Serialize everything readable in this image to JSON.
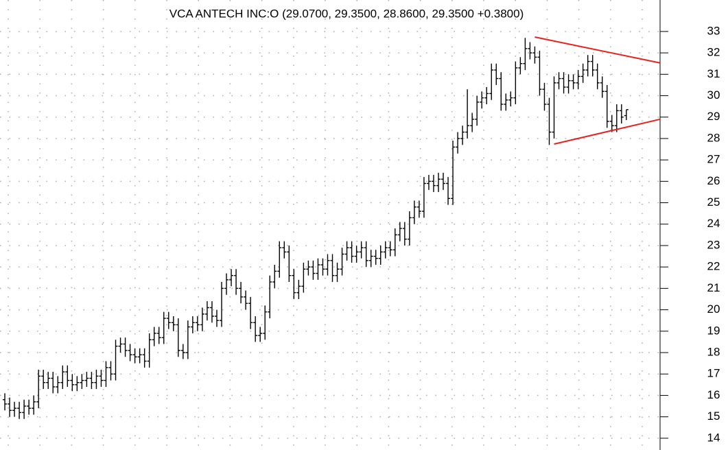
{
  "chart_data": {
    "type": "ohlc",
    "title": "VCA ANTECH INC:O (29.0700, 29.3500, 28.8600, 29.3500 +0.3800)",
    "color": "#000000",
    "xlim": [
      -1,
      136
    ],
    "ylim": [
      13.45,
      34.47
    ],
    "yticks": [
      14,
      15,
      16,
      17,
      18,
      19,
      20,
      21,
      22,
      23,
      24,
      25,
      26,
      27,
      28,
      29,
      30,
      31,
      32,
      33
    ],
    "grid": true,
    "open": [
      15.8,
      15.6,
      15.3,
      15.4,
      15.2,
      15.5,
      15.4,
      15.7,
      16.9,
      16.6,
      16.8,
      16.4,
      16.6,
      17.1,
      16.7,
      16.5,
      16.6,
      16.7,
      16.8,
      16.6,
      16.9,
      16.7,
      17.3,
      17.0,
      18.3,
      18.4,
      18.1,
      17.9,
      17.8,
      17.9,
      17.6,
      18.6,
      18.9,
      18.7,
      19.6,
      19.4,
      19.3,
      18.1,
      18.0,
      19.2,
      19.4,
      19.3,
      19.8,
      20.1,
      19.7,
      19.5,
      21.0,
      21.4,
      21.6,
      21.0,
      20.6,
      20.3,
      19.4,
      18.8,
      18.9,
      19.9,
      21.3,
      21.8,
      22.9,
      22.7,
      21.6,
      20.8,
      21.1,
      21.9,
      22.0,
      21.7,
      22.1,
      21.9,
      22.3,
      21.6,
      21.9,
      22.6,
      22.9,
      22.5,
      22.7,
      22.9,
      22.3,
      22.5,
      22.4,
      22.7,
      22.9,
      22.8,
      23.5,
      23.8,
      23.3,
      24.3,
      24.8,
      24.6,
      25.9,
      26.0,
      25.8,
      26.1,
      25.9,
      25.2,
      27.6,
      28.0,
      28.3,
      28.6,
      28.9,
      29.7,
      29.9,
      30.1,
      31.2,
      30.8,
      29.6,
      29.8,
      29.9,
      31.3,
      31.5,
      32.2,
      32.0,
      31.8,
      30.3,
      29.6,
      28.3,
      30.6,
      30.8,
      30.4,
      30.7,
      30.6,
      30.9,
      31.2,
      31.6,
      31.2,
      30.6,
      30.2,
      28.8,
      28.6,
      29.3,
      29.07
    ],
    "high": [
      16.1,
      15.9,
      15.7,
      15.7,
      15.8,
      15.8,
      16.0,
      17.2,
      17.2,
      17.1,
      17.1,
      16.9,
      17.4,
      17.4,
      17.0,
      16.9,
      17.0,
      17.1,
      17.1,
      17.2,
      17.2,
      17.6,
      17.6,
      18.6,
      18.7,
      18.7,
      18.4,
      18.2,
      18.2,
      18.2,
      18.9,
      19.2,
      19.2,
      19.9,
      19.9,
      19.7,
      19.6,
      18.4,
      19.5,
      19.7,
      19.7,
      20.1,
      20.4,
      20.4,
      20.0,
      21.3,
      21.7,
      21.9,
      21.9,
      21.3,
      20.9,
      20.6,
      19.7,
      19.2,
      20.2,
      21.6,
      22.1,
      23.2,
      23.2,
      23.0,
      21.9,
      21.4,
      22.2,
      22.3,
      22.3,
      22.4,
      22.4,
      22.6,
      22.6,
      22.2,
      22.9,
      23.2,
      23.2,
      23.0,
      23.2,
      23.2,
      22.8,
      22.8,
      23.0,
      23.2,
      23.2,
      23.8,
      24.1,
      24.1,
      24.6,
      25.1,
      25.1,
      26.2,
      26.3,
      26.3,
      26.4,
      26.4,
      26.2,
      27.9,
      28.3,
      28.6,
      30.3,
      29.2,
      30.0,
      30.2,
      30.4,
      31.5,
      31.5,
      31.1,
      30.1,
      30.2,
      31.6,
      31.8,
      32.7,
      32.5,
      32.3,
      32.1,
      30.6,
      29.9,
      30.9,
      31.1,
      31.1,
      31.0,
      31.0,
      31.2,
      31.5,
      31.9,
      31.9,
      31.5,
      30.9,
      30.5,
      29.1,
      29.6,
      29.6,
      29.35
    ],
    "low": [
      15.3,
      15.0,
      15.0,
      14.9,
      14.9,
      15.1,
      15.1,
      15.4,
      16.3,
      16.3,
      16.1,
      16.1,
      16.3,
      16.4,
      16.2,
      16.2,
      16.3,
      16.4,
      16.3,
      16.3,
      16.4,
      16.4,
      16.7,
      16.7,
      18.0,
      17.8,
      17.6,
      17.5,
      17.5,
      17.3,
      17.3,
      18.3,
      18.4,
      18.4,
      19.1,
      19.0,
      17.8,
      17.7,
      17.7,
      18.9,
      19.0,
      19.0,
      19.5,
      19.4,
      19.2,
      19.2,
      20.7,
      21.1,
      20.7,
      20.3,
      20.0,
      19.1,
      18.5,
      18.5,
      18.6,
      19.6,
      21.0,
      21.5,
      22.4,
      21.3,
      20.5,
      20.5,
      20.8,
      21.6,
      21.4,
      21.4,
      21.6,
      21.6,
      21.3,
      21.3,
      21.6,
      22.3,
      22.2,
      22.2,
      22.4,
      22.0,
      22.0,
      22.1,
      22.1,
      22.4,
      22.5,
      22.5,
      23.2,
      23.0,
      23.0,
      24.0,
      24.3,
      24.3,
      25.6,
      25.5,
      25.5,
      25.6,
      24.9,
      24.9,
      27.3,
      27.7,
      28.0,
      28.3,
      28.6,
      29.4,
      29.6,
      29.8,
      30.5,
      29.3,
      29.3,
      29.5,
      29.6,
      31.0,
      31.2,
      31.7,
      31.5,
      30.0,
      29.3,
      27.7,
      28.0,
      30.3,
      30.1,
      30.1,
      30.3,
      30.3,
      30.6,
      30.9,
      30.9,
      30.3,
      29.9,
      28.5,
      28.3,
      28.3,
      28.7,
      28.86
    ],
    "close": [
      15.6,
      15.3,
      15.4,
      15.2,
      15.5,
      15.4,
      15.7,
      16.9,
      16.6,
      16.8,
      16.4,
      16.6,
      17.1,
      16.7,
      16.5,
      16.6,
      16.7,
      16.8,
      16.6,
      16.9,
      16.7,
      17.3,
      17.0,
      18.3,
      18.4,
      18.1,
      17.9,
      17.8,
      17.9,
      17.6,
      18.6,
      18.9,
      18.7,
      19.6,
      19.4,
      19.3,
      18.1,
      18.0,
      19.2,
      19.4,
      19.3,
      19.8,
      20.1,
      19.7,
      19.5,
      21.0,
      21.4,
      21.6,
      21.0,
      20.6,
      20.3,
      19.4,
      18.8,
      18.9,
      19.9,
      21.3,
      21.8,
      22.9,
      22.7,
      21.6,
      20.8,
      21.1,
      21.9,
      22.0,
      21.7,
      22.1,
      21.9,
      22.3,
      21.6,
      21.9,
      22.6,
      22.9,
      22.5,
      22.7,
      22.9,
      22.3,
      22.5,
      22.4,
      22.7,
      22.9,
      22.8,
      23.5,
      23.8,
      23.3,
      24.3,
      24.8,
      24.6,
      25.9,
      26.0,
      25.8,
      26.1,
      25.9,
      25.2,
      27.6,
      28.0,
      28.3,
      28.6,
      28.9,
      29.7,
      29.9,
      30.1,
      31.2,
      30.8,
      29.6,
      29.8,
      29.9,
      31.3,
      31.5,
      32.2,
      32.0,
      31.8,
      30.3,
      29.6,
      28.3,
      30.6,
      30.8,
      30.4,
      30.7,
      30.6,
      30.9,
      31.2,
      31.6,
      31.2,
      30.6,
      30.2,
      28.8,
      28.6,
      29.3,
      29.0,
      29.35
    ],
    "trendlines": [
      {
        "color": "#e8211d",
        "start": [
          110,
          32.74
        ],
        "end": [
          136,
          31.53
        ]
      },
      {
        "color": "#e8211d",
        "start": [
          114,
          27.74
        ],
        "end": [
          136,
          28.9
        ]
      }
    ]
  }
}
